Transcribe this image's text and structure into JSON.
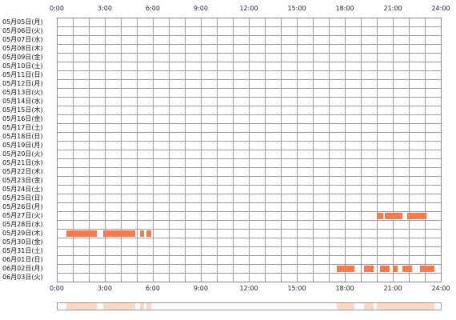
{
  "chart_data": {
    "type": "timeline",
    "x_ticks": [
      "0:00",
      "3:00",
      "6:00",
      "9:00",
      "12:00",
      "15:00",
      "18:00",
      "21:00",
      "24:00"
    ],
    "xlim": [
      0,
      24
    ],
    "rows": [
      "05月05日(月)",
      "05月06日(火)",
      "05月07日(水)",
      "05月08日(木)",
      "05月09日(金)",
      "05月10日(土)",
      "05月11日(日)",
      "05月12日(月)",
      "05月13日(火)",
      "05月14日(水)",
      "05月15日(木)",
      "05月16日(金)",
      "05月17日(土)",
      "05月18日(日)",
      "05月19日(月)",
      "05月20日(火)",
      "05月21日(水)",
      "05月22日(木)",
      "05月23日(金)",
      "05月24日(土)",
      "05月25日(日)",
      "05月26日(月)",
      "05月27日(火)",
      "05月28日(水)",
      "05月29日(木)",
      "05月30日(金)",
      "05月31日(土)",
      "06月01日(日)",
      "06月02日(月)",
      "06月03日(火)"
    ],
    "bars": [
      {
        "row": 22,
        "start": 20.0,
        "end": 20.4
      },
      {
        "row": 22,
        "start": 20.5,
        "end": 21.6
      },
      {
        "row": 22,
        "start": 21.9,
        "end": 23.1
      },
      {
        "row": 24,
        "start": 0.6,
        "end": 2.5
      },
      {
        "row": 24,
        "start": 2.9,
        "end": 4.9
      },
      {
        "row": 24,
        "start": 5.2,
        "end": 5.45
      },
      {
        "row": 24,
        "start": 5.6,
        "end": 5.9
      },
      {
        "row": 28,
        "start": 17.5,
        "end": 18.6
      },
      {
        "row": 28,
        "start": 19.2,
        "end": 19.8
      },
      {
        "row": 28,
        "start": 20.2,
        "end": 20.8
      },
      {
        "row": 28,
        "start": 21.0,
        "end": 21.3
      },
      {
        "row": 28,
        "start": 21.6,
        "end": 22.2
      },
      {
        "row": 28,
        "start": 22.7,
        "end": 23.6
      }
    ],
    "overview_bars": [
      {
        "start": 0.6,
        "end": 2.5
      },
      {
        "start": 2.9,
        "end": 4.9
      },
      {
        "start": 5.2,
        "end": 5.45
      },
      {
        "start": 5.6,
        "end": 5.9
      },
      {
        "start": 17.5,
        "end": 18.6
      },
      {
        "start": 19.2,
        "end": 19.8
      },
      {
        "start": 20.0,
        "end": 21.6
      },
      {
        "start": 21.6,
        "end": 23.6
      }
    ],
    "colors": {
      "bar": "#f47a4d",
      "overview_bar": "#fbd7c6",
      "grid": "#999999",
      "border": "#888888",
      "axis_text": "#222244"
    }
  }
}
